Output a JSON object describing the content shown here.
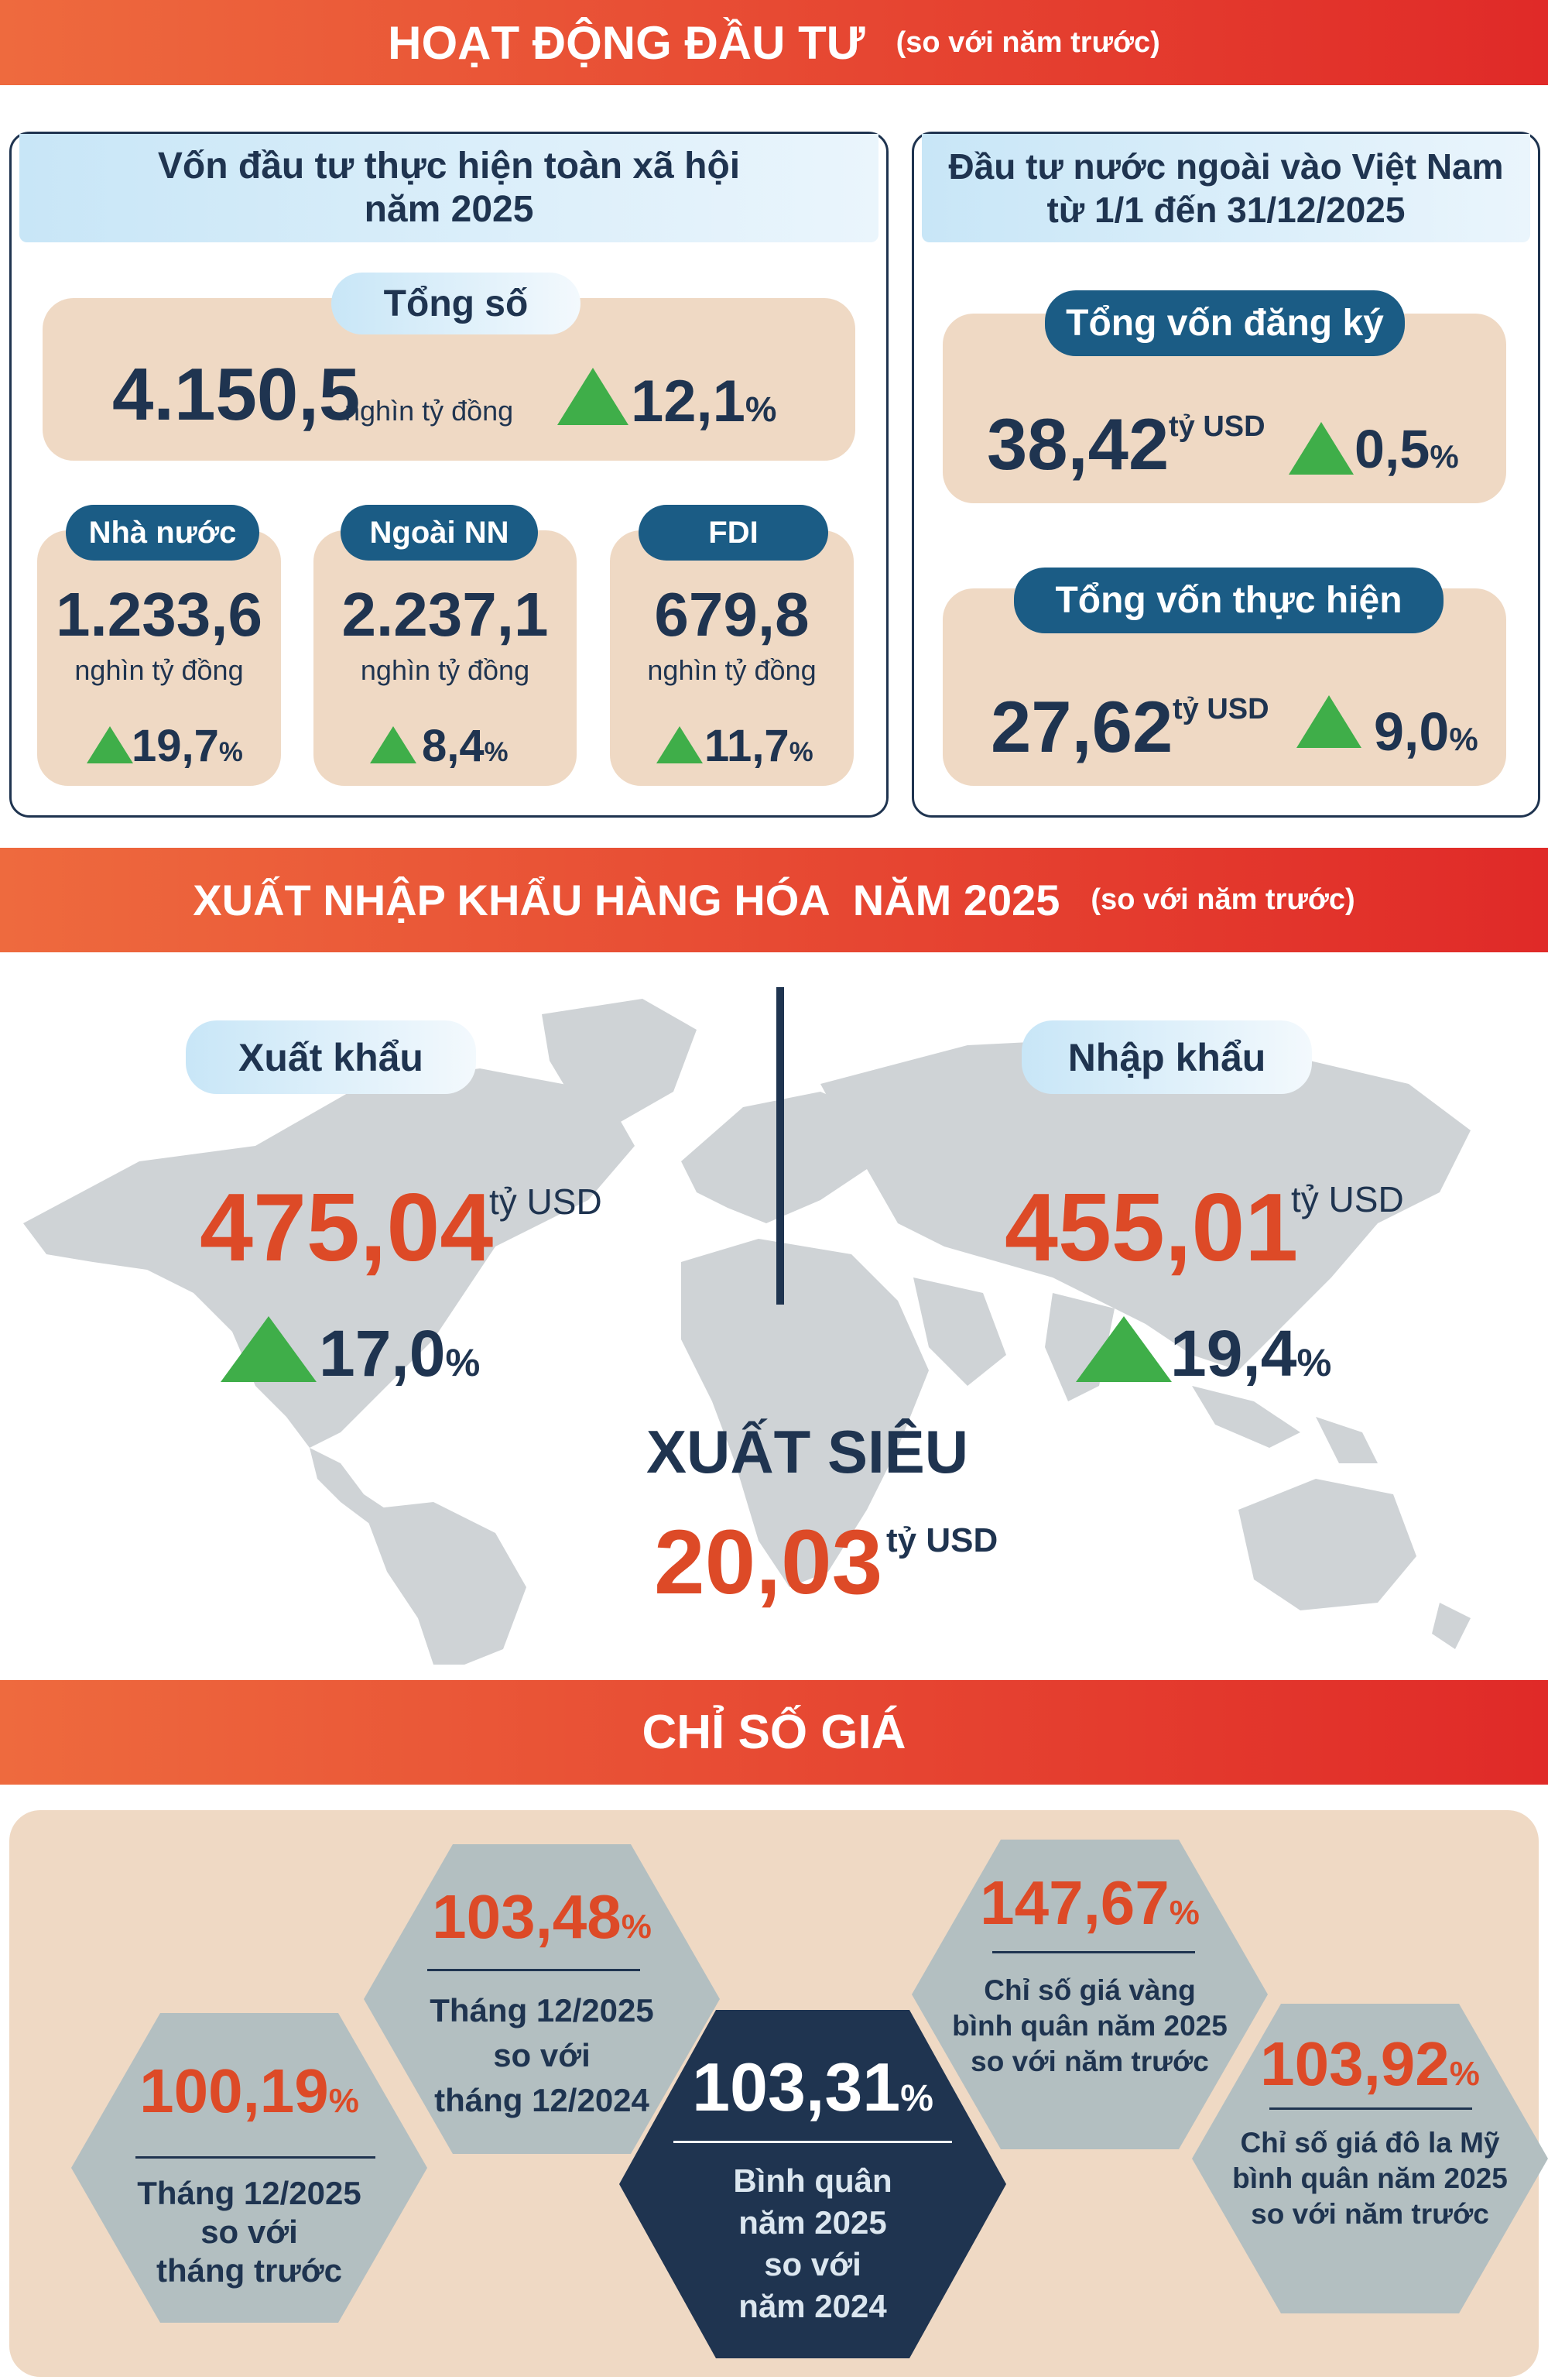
{
  "investment": {
    "title": "HOẠT ĐỘNG ĐẦU TƯ",
    "subtitle": "(so với năm trước)",
    "social": {
      "heading_line1": "Vốn đầu tư thực hiện toàn xã hội",
      "heading_line2": "năm 2025",
      "total_label": "Tổng số",
      "total_value": "4.150,5",
      "total_unit": "nghìn tỷ đồng",
      "total_growth": "12,1",
      "items": [
        {
          "label": "Nhà nước",
          "value": "1.233,6",
          "unit": "nghìn tỷ đồng",
          "growth": "19,7"
        },
        {
          "label": "Ngoài NN",
          "value": "2.237,1",
          "unit": "nghìn tỷ đồng",
          "growth": "8,4"
        },
        {
          "label": "FDI",
          "value": "679,8",
          "unit": "nghìn tỷ đồng",
          "growth": "11,7"
        }
      ]
    },
    "fdi": {
      "heading_line1": "Đầu tư nước ngoài vào Việt Nam",
      "heading_line2": "từ 1/1 đến 31/12/2025",
      "registered_label": "Tổng vốn đăng ký",
      "registered_value": "38,42",
      "registered_unit": "tỷ USD",
      "registered_growth": "0,5",
      "realized_label": "Tổng vốn thực hiện",
      "realized_value": "27,62",
      "realized_unit": "tỷ USD",
      "realized_growth": "9,0"
    }
  },
  "trade": {
    "title": "XUẤT NHẬP KHẨU HÀNG HÓA  NĂM 2025",
    "subtitle": "(so với năm trước)",
    "export_label": "Xuất khẩu",
    "export_value": "475,04",
    "export_unit": "tỷ USD",
    "export_growth": "17,0",
    "import_label": "Nhập khẩu",
    "import_value": "455,01",
    "import_unit": "tỷ USD",
    "import_growth": "19,4",
    "surplus_label": "XUẤT SIÊU",
    "surplus_value": "20,03",
    "surplus_unit": "tỷ USD"
  },
  "prices": {
    "title": "CHỈ SỐ GIÁ",
    "percent_sign": "%",
    "items": [
      {
        "value": "100,19",
        "lines": [
          "Tháng 12/2025",
          "so với",
          "tháng trước"
        ]
      },
      {
        "value": "103,48",
        "lines": [
          "Tháng 12/2025",
          "so với",
          "tháng 12/2024"
        ]
      },
      {
        "value": "103,31",
        "lines": [
          "Bình quân",
          "năm 2025",
          "so với",
          "năm 2024"
        ]
      },
      {
        "value": "147,67",
        "lines": [
          "Chỉ số giá vàng",
          "bình quân năm 2025",
          "so với năm trước"
        ]
      },
      {
        "value": "103,92",
        "lines": [
          "Chỉ số giá đô la Mỹ",
          "bình quân năm 2025",
          "so với năm trước"
        ]
      }
    ]
  },
  "colors": {
    "banner_start": "#ee6a3e",
    "banner_end": "#e02a28",
    "navy": "#1f3450",
    "accent_red": "#dd4a27",
    "up_green": "#3fae49",
    "box_beige": "#efd9c4",
    "hex_grey": "#b3bfc1"
  },
  "icons": [
    "up-triangle-icon",
    "world-map"
  ]
}
